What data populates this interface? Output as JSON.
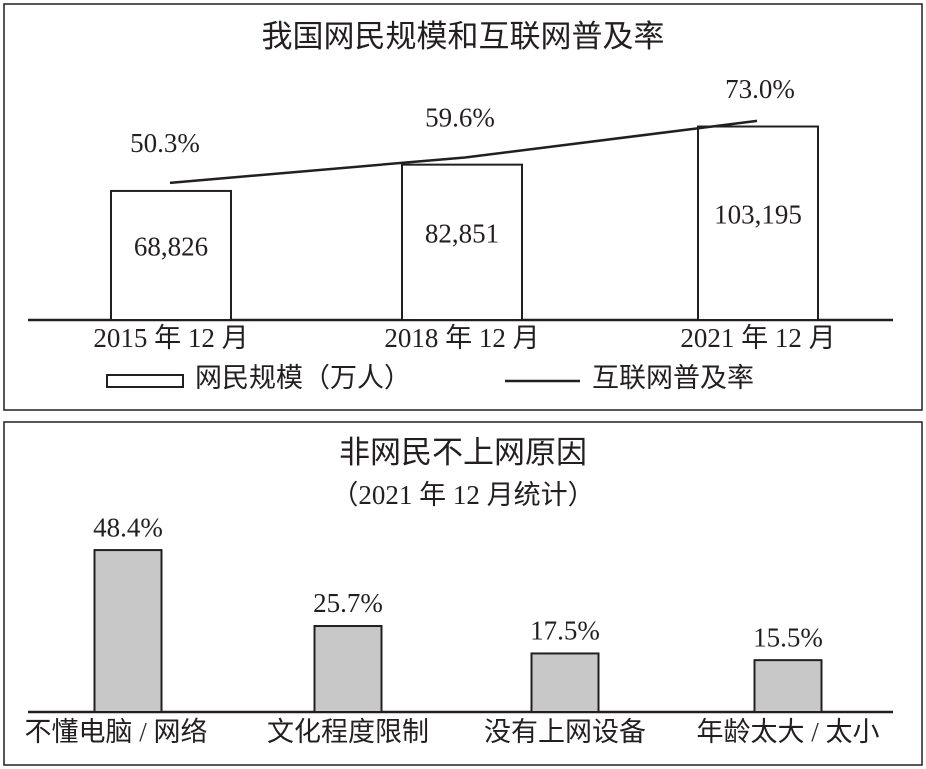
{
  "chart_data": [
    {
      "type": "bar-line",
      "title": "我国网民规模和互联网普及率",
      "categories": [
        "2015 年 12 月",
        "2018 年 12 月",
        "2021 年 12 月"
      ],
      "series": [
        {
          "name": "网民规模（万人）",
          "color": "#ffffff",
          "values": [
            68826,
            82851,
            103195
          ],
          "value_labels": [
            "68,826",
            "82,851",
            "103,195"
          ]
        },
        {
          "name": "互联网普及率",
          "color": "#231f20",
          "axis": "y2",
          "values": [
            50.3,
            59.6,
            73.0
          ],
          "value_labels": [
            "50.3%",
            "59.6%",
            "73.0%"
          ]
        }
      ],
      "ylim": [
        0,
        160000
      ],
      "y2lim": [
        0,
        110
      ]
    },
    {
      "type": "bar",
      "title": "非网民不上网原因",
      "subtitle": "（2021 年 12 月统计）",
      "categories": [
        "不懂电脑 / 网络",
        "文化程度限制",
        "没有上网设备",
        "年龄太大 / 太小"
      ],
      "values": [
        48.4,
        25.7,
        17.5,
        15.5
      ],
      "value_labels": [
        "48.4%",
        "25.7%",
        "17.5%",
        "15.5%"
      ],
      "color": "#c8c8c8",
      "ylim": [
        0,
        55
      ]
    }
  ]
}
